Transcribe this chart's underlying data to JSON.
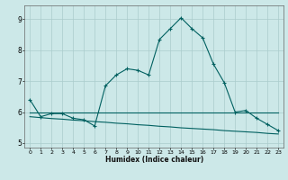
{
  "title": "",
  "xlabel": "Humidex (Indice chaleur)",
  "bg_color": "#cce8e8",
  "grid_color": "#aacccc",
  "line_color": "#006060",
  "xlim": [
    -0.5,
    23.5
  ],
  "ylim": [
    4.85,
    9.45
  ],
  "yticks": [
    5,
    6,
    7,
    8,
    9
  ],
  "xticks": [
    0,
    1,
    2,
    3,
    4,
    5,
    6,
    7,
    8,
    9,
    10,
    11,
    12,
    13,
    14,
    15,
    16,
    17,
    18,
    19,
    20,
    21,
    22,
    23
  ],
  "line1_x": [
    0,
    1,
    2,
    3,
    4,
    5,
    6,
    7,
    8,
    9,
    10,
    11,
    12,
    13,
    14,
    15,
    16,
    17,
    18,
    19,
    20,
    21,
    22,
    23
  ],
  "line1_y": [
    6.4,
    5.85,
    5.95,
    5.95,
    5.8,
    5.75,
    5.55,
    6.85,
    7.2,
    7.4,
    7.35,
    7.2,
    8.35,
    8.7,
    9.05,
    8.7,
    8.4,
    7.55,
    6.95,
    6.0,
    6.05,
    5.8,
    5.6,
    5.4
  ],
  "line2_x": [
    0,
    1,
    2,
    3,
    4,
    5,
    6,
    7,
    8,
    9,
    10,
    11,
    12,
    13,
    14,
    15,
    16,
    17,
    18,
    19,
    20,
    21,
    22,
    23
  ],
  "line2_y": [
    5.98,
    5.98,
    5.98,
    5.98,
    5.98,
    5.98,
    5.98,
    5.98,
    5.98,
    5.98,
    5.98,
    5.98,
    5.98,
    5.98,
    5.98,
    5.98,
    5.98,
    5.98,
    5.98,
    5.98,
    5.98,
    5.98,
    5.98,
    5.98
  ],
  "line3_x": [
    0,
    1,
    2,
    3,
    4,
    5,
    6,
    7,
    8,
    9,
    10,
    11,
    12,
    13,
    14,
    15,
    16,
    17,
    18,
    19,
    20,
    21,
    22,
    23
  ],
  "line3_y": [
    5.85,
    5.82,
    5.79,
    5.77,
    5.74,
    5.72,
    5.69,
    5.67,
    5.64,
    5.62,
    5.59,
    5.57,
    5.54,
    5.52,
    5.49,
    5.47,
    5.45,
    5.43,
    5.4,
    5.38,
    5.36,
    5.34,
    5.31,
    5.29
  ]
}
